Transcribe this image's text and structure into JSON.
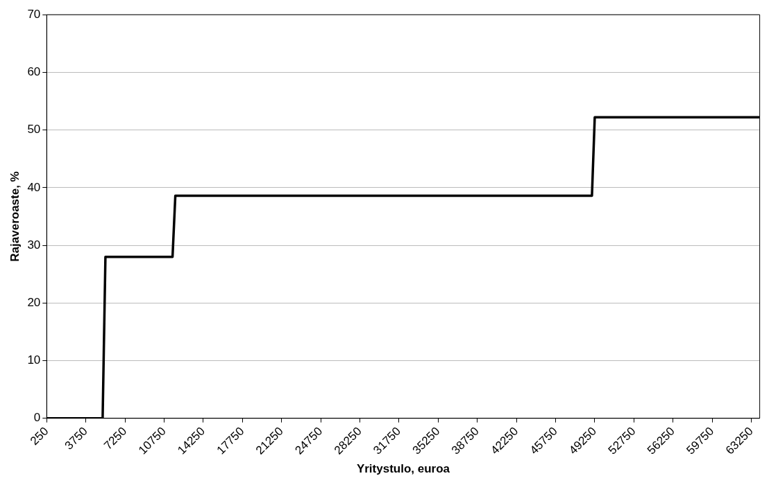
{
  "chart_data": {
    "type": "line",
    "xlabel": "Yritystulo, euroa",
    "ylabel": "Rajaveroaste, %",
    "series": [
      {
        "color": "#000000",
        "x": [
          250,
          5250,
          5500,
          11500,
          11750,
          49000,
          49250,
          64000
        ],
        "values": [
          0,
          0,
          28,
          28,
          38.6,
          38.6,
          52.2,
          52.2
        ]
      }
    ],
    "xlim": [
      250,
      64000
    ],
    "xticks": [
      250,
      3750,
      7250,
      10750,
      14250,
      17750,
      21250,
      24750,
      28250,
      31750,
      35250,
      38750,
      42250,
      45750,
      49250,
      52750,
      56250,
      59750,
      63250
    ],
    "ylim": [
      0,
      70
    ],
    "yticks": [
      0,
      10,
      20,
      30,
      40,
      50,
      60,
      70
    ],
    "grid": "y",
    "marker": "none",
    "line_style": "solid",
    "legend": false
  }
}
